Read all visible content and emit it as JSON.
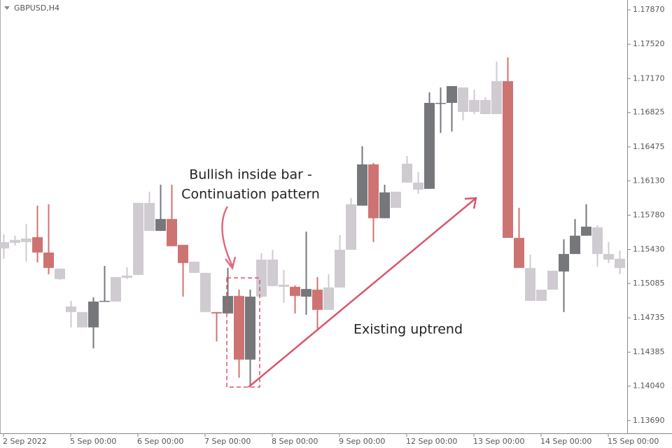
{
  "chart_data": {
    "type": "candlestick",
    "title": "GBPUSD,H4",
    "categories": [
      "2 Sep 2022",
      null,
      null,
      null,
      null,
      null,
      "5 Sep 00:00",
      null,
      null,
      null,
      null,
      null,
      "6 Sep 00:00",
      null,
      null,
      null,
      null,
      null,
      "7 Sep 00:00",
      null,
      null,
      null,
      null,
      null,
      "8 Sep 00:00",
      null,
      null,
      null,
      null,
      null,
      "9 Sep 00:00",
      null,
      null,
      null,
      null,
      null,
      "12 Sep 00:00",
      null,
      null,
      null,
      null,
      null,
      "13 Sep 00:00",
      null,
      null,
      null,
      null,
      null,
      "14 Sep 00:00",
      null,
      null,
      null,
      null,
      null,
      "15 Sep 00:00",
      null
    ],
    "open": [
      1.15442,
      1.15499,
      1.15506,
      1.15556,
      1.154,
      1.15236,
      1.14851,
      1.14794,
      1.14638,
      1.14901,
      1.14901,
      1.15143,
      1.15172,
      1.15905,
      1.1562,
      1.15741,
      1.15478,
      1.15307,
      1.15193,
      1.14794,
      1.1478,
      1.14958,
      1.1431,
      1.14951,
      1.15328,
      1.15072,
      1.15051,
      1.14951,
      1.15022,
      1.14816,
      1.15044,
      1.15428,
      1.15877,
      1.16297,
      1.15749,
      1.15855,
      1.16112,
      1.16112,
      1.16048,
      1.16916,
      1.16923,
      1.1708,
      1.16831,
      1.16952,
      1.16809,
      1.17144,
      1.15549,
      1.15243,
      1.14908,
      1.15022,
      1.15207,
      1.15385,
      1.15571,
      1.15656,
      1.15385,
      1.15336
    ],
    "high": [
      1.15585,
      1.15571,
      1.15692,
      1.15877,
      1.15891,
      1.15236,
      1.14908,
      1.14794,
      1.14944,
      1.15264,
      1.1515,
      1.1525,
      1.15905,
      1.16019,
      1.1609,
      1.1609,
      1.15478,
      1.15307,
      1.15193,
      1.14794,
      1.15243,
      1.15022,
      1.15022,
      1.15393,
      1.15428,
      1.15222,
      1.15065,
      1.15613,
      1.1515,
      1.15179,
      1.15578,
      1.15955,
      1.16482,
      1.16311,
      1.1609,
      1.16019,
      1.16382,
      1.16218,
      1.1703,
      1.1708,
      1.17094,
      1.1708,
      1.17059,
      1.1698,
      1.17343,
      1.17386,
      1.15855,
      1.15378,
      1.15022,
      1.15215,
      1.15535,
      1.15741,
      1.15891,
      1.15677,
      1.15506,
      1.15421
    ],
    "low": [
      1.15336,
      1.15471,
      1.15307,
      1.153,
      1.15179,
      1.15122,
      1.14638,
      1.14638,
      1.14424,
      1.14901,
      1.14901,
      1.15129,
      1.15172,
      1.1562,
      1.1562,
      1.15464,
      1.14951,
      1.15193,
      1.14794,
      1.14495,
      1.1478,
      1.14125,
      1.14047,
      1.14944,
      1.15058,
      1.14887,
      1.1478,
      1.14766,
      1.14624,
      1.14816,
      1.15044,
      1.15428,
      1.15877,
      1.15506,
      1.15749,
      1.15855,
      1.16112,
      1.15998,
      1.16048,
      1.16617,
      1.16631,
      1.16745,
      1.16809,
      1.16809,
      1.16809,
      1.15549,
      1.15243,
      1.14908,
      1.14908,
      1.15022,
      1.14794,
      1.15385,
      1.15571,
      1.15257,
      1.15293,
      1.15179
    ],
    "close": [
      1.15506,
      1.15528,
      1.15542,
      1.154,
      1.15243,
      1.15129,
      1.14794,
      1.14638,
      1.14901,
      1.14908,
      1.1515,
      1.15165,
      1.15905,
      1.1562,
      1.15741,
      1.15464,
      1.15293,
      1.15193,
      1.14794,
      1.1478,
      1.14958,
      1.1431,
      1.14951,
      1.15328,
      1.15058,
      1.15051,
      1.14958,
      1.15029,
      1.14816,
      1.15044,
      1.15428,
      1.15891,
      1.16297,
      1.15749,
      1.16012,
      1.16019,
      1.16304,
      1.1604,
      1.16923,
      1.16923,
      1.17094,
      1.16831,
      1.16952,
      1.16809,
      1.17144,
      1.15549,
      1.15243,
      1.14908,
      1.15022,
      1.15215,
      1.15385,
      1.15571,
      1.15663,
      1.15385,
      1.15328,
      1.15243
    ],
    "colors": [
      "#cfcbd1",
      "#cfcbd1",
      "#cfcbd1",
      "#cd7372",
      "#cd7372",
      "#cfcbd1",
      "#cfcbd1",
      "#cfcbd1",
      "#76777b",
      "#76777b",
      "#cfcbd1",
      "#cfcbd1",
      "#cfcbd1",
      "#cfcbd1",
      "#76777b",
      "#cd7372",
      "#cd7372",
      "#cfcbd1",
      "#cfcbd1",
      "#cd7372",
      "#76777b",
      "#cd7372",
      "#76777b",
      "#cfcbd1",
      "#cfcbd1",
      "#cfcbd1",
      "#cd7372",
      "#76777b",
      "#cd7372",
      "#cfcbd1",
      "#cfcbd1",
      "#cfcbd1",
      "#76777b",
      "#cd7372",
      "#76777b",
      "#cfcbd1",
      "#cfcbd1",
      "#cfcbd1",
      "#76777b",
      "#76777b",
      "#76777b",
      "#cfcbd1",
      "#cfcbd1",
      "#cfcbd1",
      "#cfcbd1",
      "#cd7372",
      "#cd7372",
      "#cfcbd1",
      "#cfcbd1",
      "#cfcbd1",
      "#76777b",
      "#76777b",
      "#76777b",
      "#cfcbd1",
      "#cfcbd1",
      "#cfcbd1"
    ],
    "ylim": [
      1.1356,
      1.1797
    ],
    "yticks": [
      {
        "value": 1.1787,
        "label": "1.17870"
      },
      {
        "value": 1.1752,
        "label": "1.17520"
      },
      {
        "value": 1.1717,
        "label": "1.17170"
      },
      {
        "value": 1.16825,
        "label": "1.16825"
      },
      {
        "value": 1.16475,
        "label": "1.16475"
      },
      {
        "value": 1.1613,
        "label": "1.16130"
      },
      {
        "value": 1.1578,
        "label": "1.15780"
      },
      {
        "value": 1.1543,
        "label": "1.15430"
      },
      {
        "value": 1.15085,
        "label": "1.15085"
      },
      {
        "value": 1.14735,
        "label": "1.14735"
      },
      {
        "value": 1.14385,
        "label": "1.14385"
      },
      {
        "value": 1.1404,
        "label": "1.14040"
      },
      {
        "value": 1.1369,
        "label": "1.13690"
      }
    ],
    "annotations": [
      "Bullish inside bar -",
      "Continuation pattern",
      "Existing uptrend"
    ]
  }
}
